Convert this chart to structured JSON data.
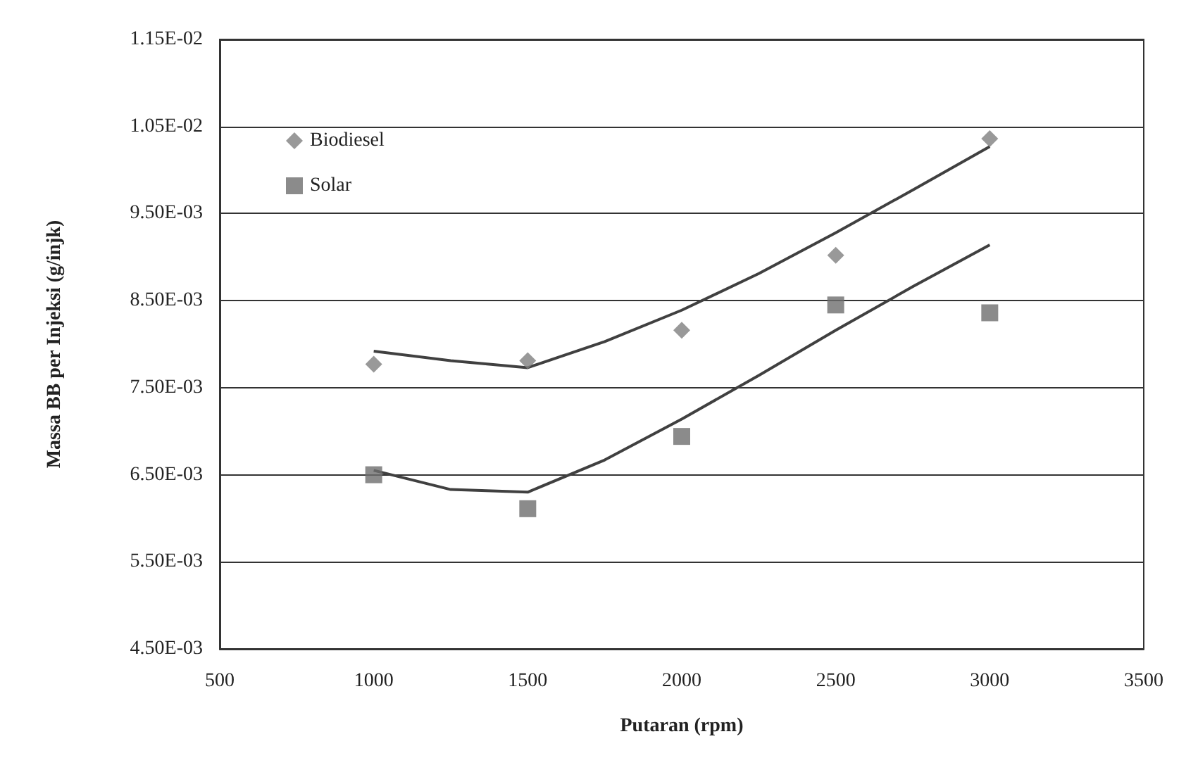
{
  "chart_data": {
    "type": "scatter",
    "xlabel": "Putaran (rpm)",
    "ylabel": "Massa BB per Injeksi (g/injk)",
    "x": [
      1000,
      1500,
      2000,
      2500,
      3000
    ],
    "series": [
      {
        "name": "Biodiesel",
        "color": "#7f7f7f",
        "marker": "diamond",
        "values": [
          0.00777,
          0.00781,
          0.00816,
          0.00902,
          0.01036
        ]
      },
      {
        "name": "Solar",
        "color": "#6e6e6e",
        "marker": "square",
        "values": [
          0.0065,
          0.00611,
          0.00694,
          0.00845,
          0.00836
        ]
      },
      {
        "type": "line",
        "color": "#404040",
        "marker": "none",
        "x": [
          1000,
          1250,
          1500,
          1750,
          2000,
          2250,
          2500,
          2750,
          3000
        ],
        "values": [
          0.00792,
          0.00781,
          0.00773,
          0.00803,
          0.00839,
          0.00881,
          0.00928,
          0.00977,
          0.01027
        ]
      },
      {
        "type": "line",
        "color": "#404040",
        "marker": "none",
        "x": [
          1000,
          1250,
          1500,
          1750,
          2000,
          2250,
          2500,
          2750,
          3000
        ],
        "values": [
          0.00655,
          0.00633,
          0.0063,
          0.00667,
          0.00714,
          0.00764,
          0.00816,
          0.00866,
          0.00914
        ]
      }
    ],
    "xlim": [
      500,
      3500
    ],
    "xticks": [
      500,
      1000,
      1500,
      2000,
      2500,
      3000,
      3500
    ],
    "ylim": [
      0.0045,
      0.0115
    ],
    "yticks": [
      {
        "value": 0.0045,
        "label": "4.50E-03"
      },
      {
        "value": 0.0055,
        "label": "5.50E-03"
      },
      {
        "value": 0.0065,
        "label": "6.50E-03"
      },
      {
        "value": 0.0075,
        "label": "7.50E-03"
      },
      {
        "value": 0.0085,
        "label": "8.50E-03"
      },
      {
        "value": 0.0095,
        "label": "9.50E-03"
      },
      {
        "value": 0.0105,
        "label": "1.05E-02"
      },
      {
        "value": 0.0115,
        "label": "1.15E-02"
      }
    ],
    "grid": "y",
    "legend": "top left"
  }
}
